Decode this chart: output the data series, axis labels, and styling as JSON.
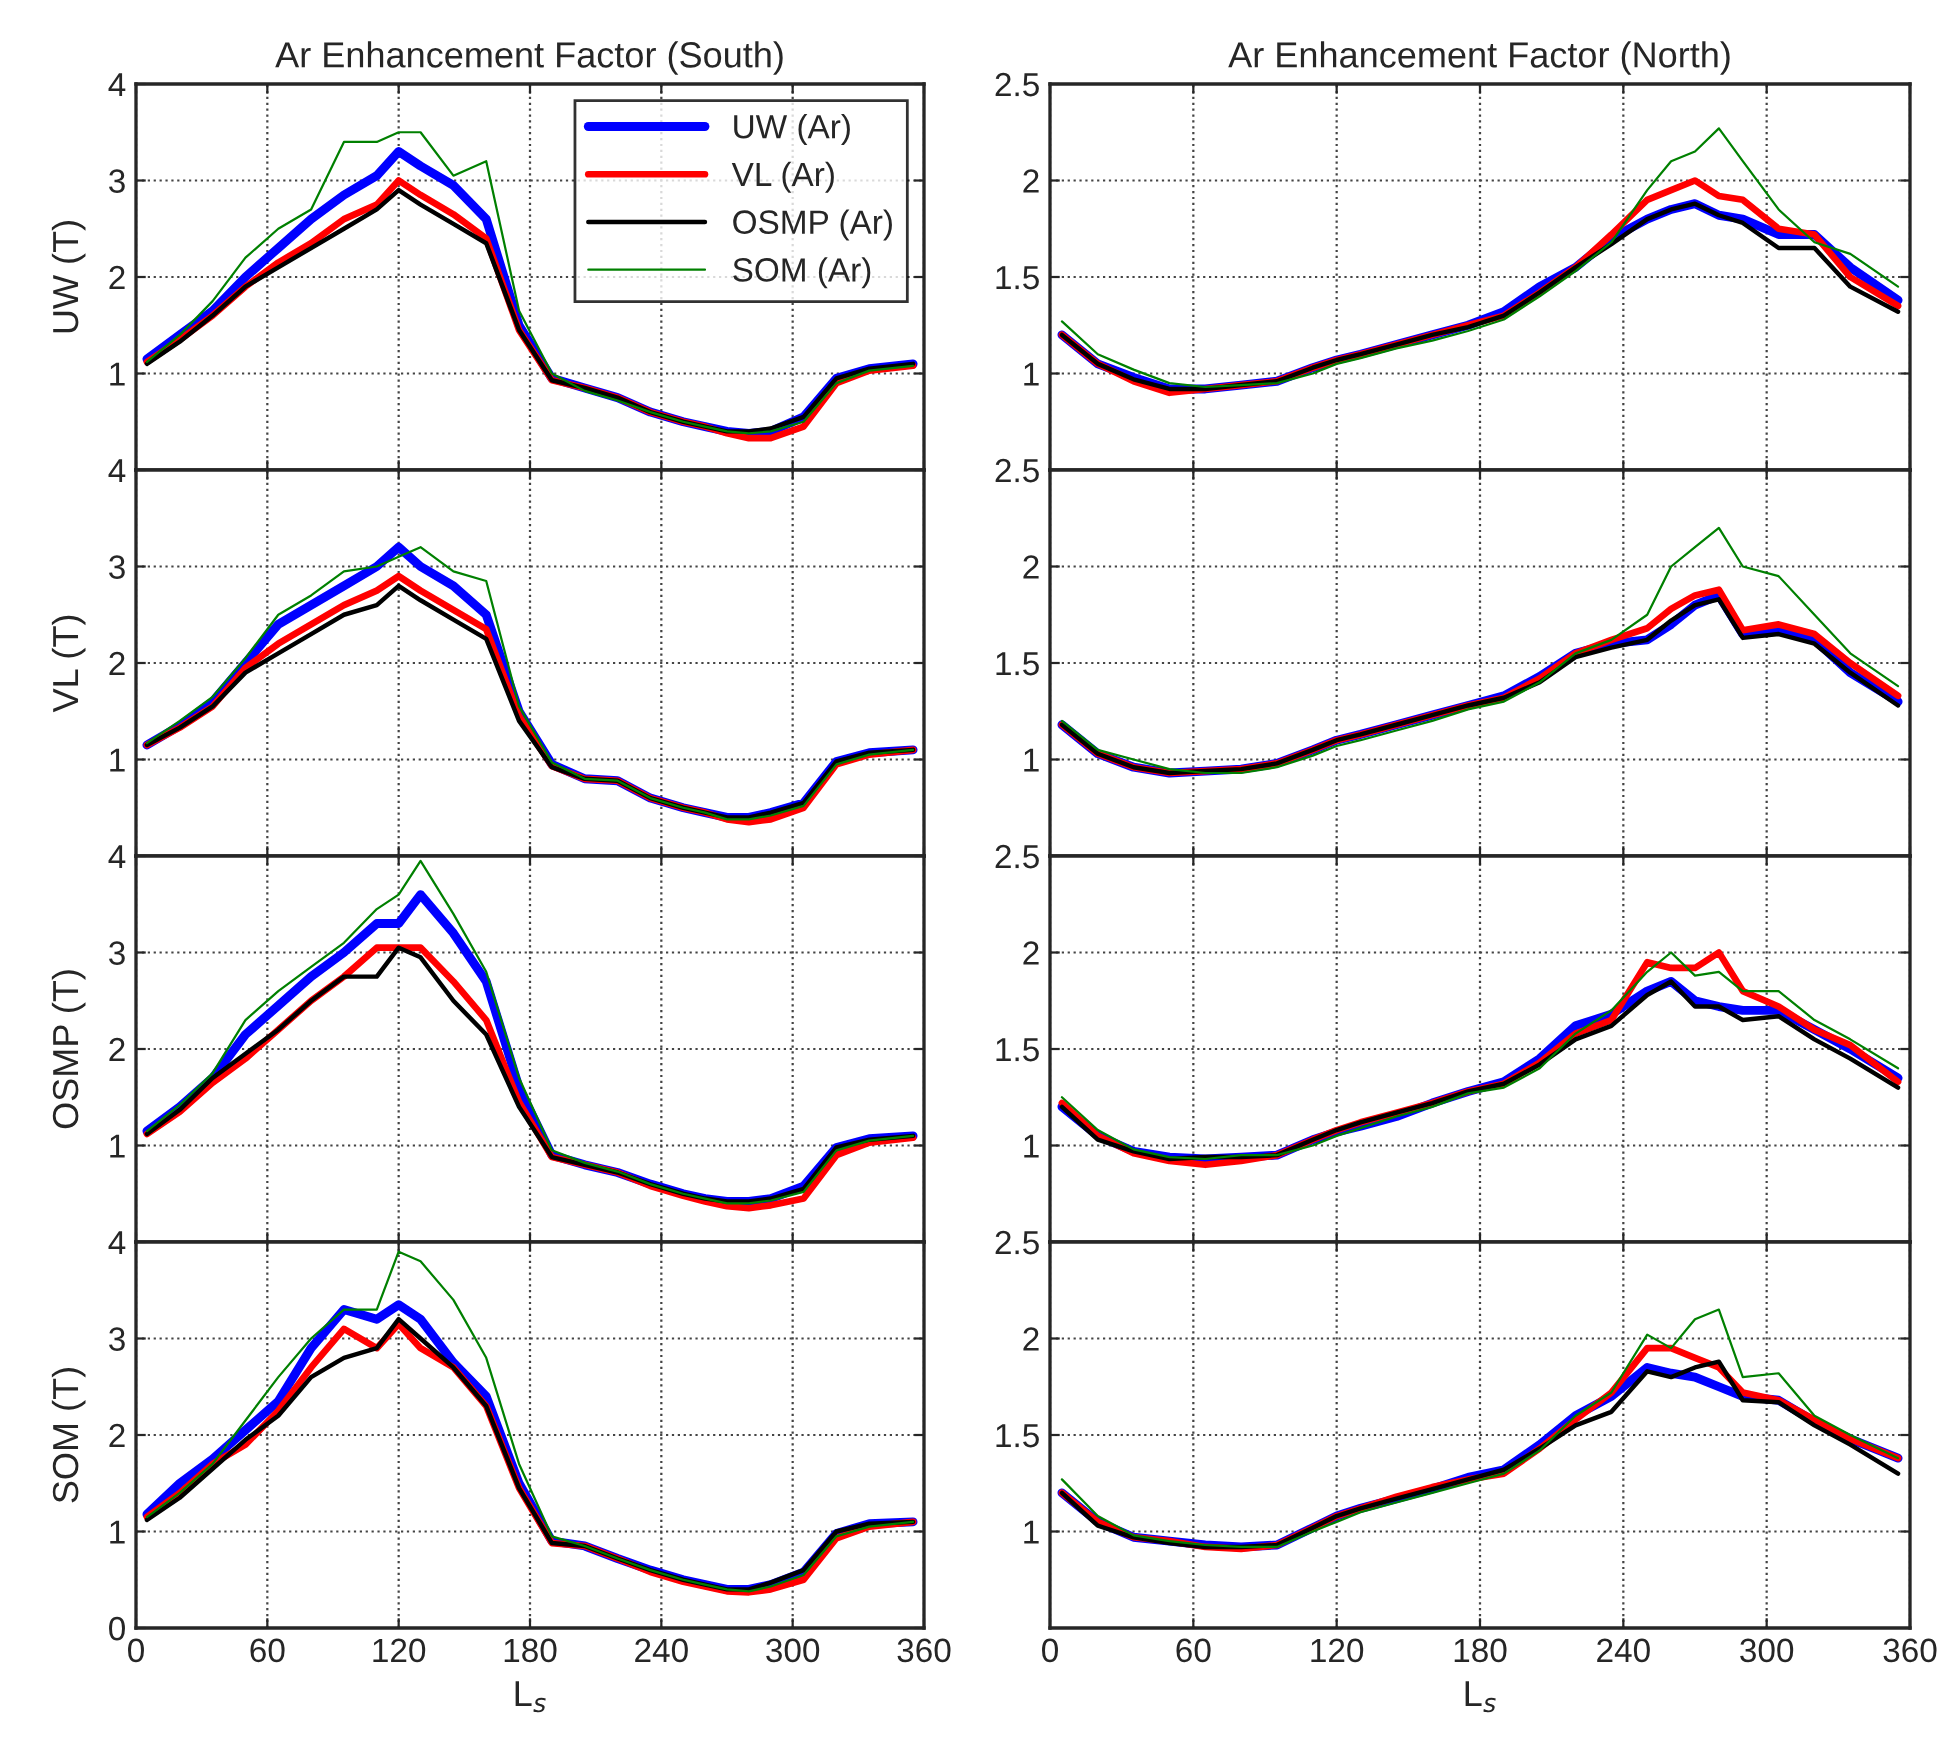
{
  "chart_data": [
    {
      "type": "line",
      "title": "Ar Enhancement Factor (South)",
      "ylabel": "UW (T)",
      "x": [
        5,
        20,
        35,
        50,
        65,
        80,
        95,
        110,
        120,
        130,
        145,
        160,
        175,
        190,
        205,
        220,
        235,
        250,
        260,
        270,
        280,
        290,
        305,
        320,
        335,
        355
      ],
      "xlim": [
        0,
        360
      ],
      "xticks": [
        0,
        60,
        120,
        180,
        240,
        300,
        360
      ],
      "ylim": [
        0,
        4
      ],
      "yticks": [
        1,
        2,
        3,
        4
      ],
      "tick_labels": "y",
      "grid": true,
      "legend": "top right",
      "series": [
        {
          "name": "UW (Ar)",
          "color": "#0000ff",
          "values": [
            1.15,
            1.4,
            1.65,
            2.0,
            2.3,
            2.6,
            2.85,
            3.05,
            3.3,
            3.15,
            2.95,
            2.6,
            1.5,
            0.95,
            0.85,
            0.75,
            0.6,
            0.5,
            0.45,
            0.4,
            0.38,
            0.4,
            0.55,
            0.95,
            1.05,
            1.1
          ]
        },
        {
          "name": "VL (Ar)",
          "color": "#ff0000",
          "values": [
            1.12,
            1.35,
            1.6,
            1.9,
            2.15,
            2.35,
            2.6,
            2.75,
            3.0,
            2.85,
            2.65,
            2.4,
            1.45,
            0.93,
            0.85,
            0.75,
            0.6,
            0.5,
            0.45,
            0.38,
            0.33,
            0.33,
            0.45,
            0.9,
            1.03,
            1.08
          ]
        },
        {
          "name": "OSMP (Ar)",
          "color": "#000000",
          "values": [
            1.1,
            1.33,
            1.6,
            1.9,
            2.1,
            2.3,
            2.5,
            2.7,
            2.9,
            2.75,
            2.55,
            2.35,
            1.45,
            0.93,
            0.85,
            0.75,
            0.6,
            0.5,
            0.45,
            0.4,
            0.4,
            0.43,
            0.55,
            0.95,
            1.05,
            1.1
          ]
        },
        {
          "name": "SOM (Ar)",
          "color": "#008000",
          "values": [
            1.12,
            1.4,
            1.75,
            2.2,
            2.5,
            2.7,
            3.4,
            3.4,
            3.5,
            3.5,
            3.05,
            3.2,
            1.65,
            1.0,
            0.82,
            0.72,
            0.6,
            0.5,
            0.45,
            0.4,
            0.38,
            0.4,
            0.5,
            0.9,
            1.03,
            1.08
          ]
        }
      ]
    },
    {
      "type": "line",
      "title": "Ar Enhancement Factor (North)",
      "x": [
        5,
        20,
        35,
        50,
        65,
        80,
        95,
        110,
        120,
        130,
        145,
        160,
        175,
        190,
        205,
        220,
        235,
        250,
        260,
        270,
        280,
        290,
        305,
        320,
        335,
        355
      ],
      "xlim": [
        0,
        360
      ],
      "xticks": [
        0,
        60,
        120,
        180,
        240,
        300,
        360
      ],
      "ylim": [
        0.5,
        2.5
      ],
      "yticks": [
        1,
        1.5,
        2,
        2.5
      ],
      "tick_labels": "y",
      "grid": true,
      "series": [
        {
          "color": "#0000ff",
          "values": [
            1.2,
            1.05,
            0.98,
            0.92,
            0.92,
            0.94,
            0.96,
            1.03,
            1.07,
            1.1,
            1.15,
            1.2,
            1.25,
            1.32,
            1.45,
            1.55,
            1.7,
            1.8,
            1.85,
            1.88,
            1.82,
            1.8,
            1.72,
            1.72,
            1.55,
            1.38
          ]
        },
        {
          "color": "#ff0000",
          "values": [
            1.2,
            1.05,
            0.96,
            0.9,
            0.92,
            0.94,
            0.96,
            1.03,
            1.07,
            1.1,
            1.15,
            1.2,
            1.25,
            1.3,
            1.42,
            1.55,
            1.72,
            1.9,
            1.95,
            2.0,
            1.92,
            1.9,
            1.75,
            1.72,
            1.5,
            1.35
          ]
        },
        {
          "color": "#000000",
          "values": [
            1.2,
            1.05,
            0.97,
            0.92,
            0.92,
            0.94,
            0.96,
            1.03,
            1.07,
            1.1,
            1.15,
            1.2,
            1.24,
            1.3,
            1.42,
            1.55,
            1.67,
            1.8,
            1.85,
            1.88,
            1.82,
            1.78,
            1.65,
            1.65,
            1.45,
            1.32
          ]
        },
        {
          "color": "#008000",
          "values": [
            1.27,
            1.1,
            1.02,
            0.95,
            0.93,
            0.94,
            0.95,
            1.0,
            1.05,
            1.08,
            1.13,
            1.17,
            1.22,
            1.28,
            1.4,
            1.53,
            1.68,
            1.95,
            2.1,
            2.15,
            2.27,
            2.1,
            1.85,
            1.68,
            1.62,
            1.45
          ]
        }
      ]
    },
    {
      "type": "line",
      "ylabel": "VL (T)",
      "x": [
        5,
        20,
        35,
        50,
        65,
        80,
        95,
        110,
        120,
        130,
        145,
        160,
        175,
        190,
        205,
        220,
        235,
        250,
        260,
        270,
        280,
        290,
        305,
        320,
        335,
        355
      ],
      "xlim": [
        0,
        360
      ],
      "xticks": [
        0,
        60,
        120,
        180,
        240,
        300,
        360
      ],
      "ylim": [
        0,
        4
      ],
      "yticks": [
        1,
        2,
        3,
        4
      ],
      "tick_labels": "y",
      "grid": true,
      "series": [
        {
          "color": "#0000ff",
          "values": [
            1.15,
            1.35,
            1.6,
            2.0,
            2.4,
            2.6,
            2.8,
            3.0,
            3.2,
            3.0,
            2.8,
            2.5,
            1.5,
            0.95,
            0.8,
            0.78,
            0.6,
            0.5,
            0.45,
            0.4,
            0.4,
            0.45,
            0.55,
            0.98,
            1.07,
            1.1
          ]
        },
        {
          "color": "#ff0000",
          "values": [
            1.15,
            1.33,
            1.55,
            1.95,
            2.2,
            2.4,
            2.6,
            2.75,
            2.9,
            2.75,
            2.55,
            2.35,
            1.45,
            0.93,
            0.8,
            0.78,
            0.6,
            0.5,
            0.45,
            0.38,
            0.35,
            0.38,
            0.5,
            0.95,
            1.05,
            1.1
          ]
        },
        {
          "color": "#000000",
          "values": [
            1.15,
            1.33,
            1.55,
            1.9,
            2.1,
            2.3,
            2.5,
            2.6,
            2.8,
            2.65,
            2.45,
            2.25,
            1.4,
            0.92,
            0.8,
            0.78,
            0.6,
            0.5,
            0.45,
            0.4,
            0.4,
            0.45,
            0.55,
            0.98,
            1.07,
            1.1
          ]
        },
        {
          "color": "#008000",
          "values": [
            1.17,
            1.4,
            1.65,
            2.05,
            2.5,
            2.7,
            2.95,
            3.0,
            3.1,
            3.2,
            2.95,
            2.85,
            1.55,
            0.97,
            0.8,
            0.78,
            0.6,
            0.5,
            0.45,
            0.38,
            0.38,
            0.42,
            0.52,
            0.95,
            1.05,
            1.1
          ]
        }
      ]
    },
    {
      "type": "line",
      "x": [
        5,
        20,
        35,
        50,
        65,
        80,
        95,
        110,
        120,
        130,
        145,
        160,
        175,
        190,
        205,
        220,
        235,
        250,
        260,
        270,
        280,
        290,
        305,
        320,
        335,
        355
      ],
      "xlim": [
        0,
        360
      ],
      "xticks": [
        0,
        60,
        120,
        180,
        240,
        300,
        360
      ],
      "ylim": [
        0.5,
        2.5
      ],
      "yticks": [
        1,
        1.5,
        2,
        2.5
      ],
      "tick_labels": "y",
      "grid": true,
      "series": [
        {
          "color": "#0000ff",
          "values": [
            1.18,
            1.03,
            0.96,
            0.93,
            0.94,
            0.95,
            0.98,
            1.05,
            1.1,
            1.13,
            1.18,
            1.23,
            1.28,
            1.33,
            1.43,
            1.55,
            1.6,
            1.62,
            1.7,
            1.8,
            1.85,
            1.65,
            1.68,
            1.62,
            1.45,
            1.3
          ]
        },
        {
          "color": "#ff0000",
          "values": [
            1.18,
            1.03,
            0.96,
            0.93,
            0.94,
            0.95,
            0.98,
            1.05,
            1.1,
            1.13,
            1.18,
            1.23,
            1.28,
            1.32,
            1.42,
            1.55,
            1.62,
            1.68,
            1.78,
            1.85,
            1.88,
            1.67,
            1.7,
            1.65,
            1.5,
            1.33
          ]
        },
        {
          "color": "#000000",
          "values": [
            1.18,
            1.03,
            0.96,
            0.93,
            0.94,
            0.95,
            0.98,
            1.05,
            1.1,
            1.13,
            1.18,
            1.23,
            1.28,
            1.32,
            1.4,
            1.53,
            1.58,
            1.62,
            1.72,
            1.8,
            1.83,
            1.63,
            1.65,
            1.6,
            1.45,
            1.28
          ]
        },
        {
          "color": "#008000",
          "values": [
            1.2,
            1.05,
            1.0,
            0.95,
            0.93,
            0.93,
            0.96,
            1.02,
            1.07,
            1.1,
            1.15,
            1.2,
            1.26,
            1.3,
            1.4,
            1.55,
            1.62,
            1.75,
            2.0,
            2.1,
            2.2,
            2.0,
            1.95,
            1.75,
            1.55,
            1.38
          ]
        }
      ]
    },
    {
      "type": "line",
      "ylabel": "OSMP (T)",
      "x": [
        5,
        20,
        35,
        50,
        65,
        80,
        95,
        110,
        120,
        130,
        145,
        160,
        175,
        190,
        205,
        220,
        235,
        250,
        260,
        270,
        280,
        290,
        305,
        320,
        335,
        355
      ],
      "xlim": [
        0,
        360
      ],
      "xticks": [
        0,
        60,
        120,
        180,
        240,
        300,
        360
      ],
      "ylim": [
        0,
        4
      ],
      "yticks": [
        1,
        2,
        3,
        4
      ],
      "tick_labels": "y",
      "grid": true,
      "series": [
        {
          "color": "#0000ff",
          "values": [
            1.15,
            1.4,
            1.7,
            2.15,
            2.45,
            2.75,
            3.0,
            3.3,
            3.3,
            3.6,
            3.2,
            2.7,
            1.6,
            0.9,
            0.8,
            0.72,
            0.6,
            0.5,
            0.45,
            0.42,
            0.42,
            0.45,
            0.58,
            0.98,
            1.07,
            1.1
          ]
        },
        {
          "color": "#ff0000",
          "values": [
            1.12,
            1.35,
            1.65,
            1.9,
            2.2,
            2.5,
            2.75,
            3.05,
            3.05,
            3.05,
            2.7,
            2.3,
            1.45,
            0.88,
            0.8,
            0.72,
            0.58,
            0.48,
            0.42,
            0.37,
            0.35,
            0.38,
            0.45,
            0.9,
            1.03,
            1.08
          ]
        },
        {
          "color": "#000000",
          "values": [
            1.12,
            1.37,
            1.7,
            1.95,
            2.2,
            2.5,
            2.75,
            2.75,
            3.05,
            2.95,
            2.5,
            2.15,
            1.4,
            0.88,
            0.8,
            0.72,
            0.6,
            0.5,
            0.45,
            0.42,
            0.42,
            0.45,
            0.55,
            0.98,
            1.06,
            1.1
          ]
        },
        {
          "color": "#008000",
          "values": [
            1.15,
            1.42,
            1.75,
            2.3,
            2.6,
            2.85,
            3.1,
            3.45,
            3.6,
            3.95,
            3.4,
            2.8,
            1.7,
            0.95,
            0.82,
            0.73,
            0.6,
            0.5,
            0.45,
            0.4,
            0.4,
            0.43,
            0.52,
            0.95,
            1.05,
            1.1
          ]
        }
      ]
    },
    {
      "type": "line",
      "x": [
        5,
        20,
        35,
        50,
        65,
        80,
        95,
        110,
        120,
        130,
        145,
        160,
        175,
        190,
        205,
        220,
        235,
        250,
        260,
        270,
        280,
        290,
        305,
        320,
        335,
        355
      ],
      "xlim": [
        0,
        360
      ],
      "xticks": [
        0,
        60,
        120,
        180,
        240,
        300,
        360
      ],
      "ylim": [
        0.5,
        2.5
      ],
      "yticks": [
        1,
        1.5,
        2,
        2.5
      ],
      "tick_labels": "y",
      "grid": true,
      "series": [
        {
          "color": "#0000ff",
          "values": [
            1.2,
            1.05,
            0.97,
            0.94,
            0.93,
            0.94,
            0.95,
            1.03,
            1.07,
            1.1,
            1.15,
            1.22,
            1.28,
            1.33,
            1.45,
            1.62,
            1.68,
            1.8,
            1.85,
            1.75,
            1.72,
            1.7,
            1.7,
            1.6,
            1.5,
            1.35
          ]
        },
        {
          "color": "#ff0000",
          "values": [
            1.22,
            1.05,
            0.96,
            0.92,
            0.9,
            0.92,
            0.95,
            1.03,
            1.08,
            1.12,
            1.17,
            1.22,
            1.28,
            1.32,
            1.43,
            1.58,
            1.65,
            1.95,
            1.92,
            1.92,
            2.0,
            1.8,
            1.72,
            1.6,
            1.52,
            1.33
          ]
        },
        {
          "color": "#000000",
          "values": [
            1.2,
            1.03,
            0.97,
            0.93,
            0.94,
            0.94,
            0.95,
            1.03,
            1.08,
            1.12,
            1.17,
            1.22,
            1.28,
            1.32,
            1.42,
            1.55,
            1.62,
            1.78,
            1.85,
            1.72,
            1.72,
            1.65,
            1.67,
            1.55,
            1.45,
            1.3
          ]
        },
        {
          "color": "#008000",
          "values": [
            1.25,
            1.08,
            0.98,
            0.94,
            0.93,
            0.95,
            0.95,
            1.0,
            1.05,
            1.09,
            1.15,
            1.2,
            1.27,
            1.3,
            1.4,
            1.58,
            1.7,
            1.9,
            2.0,
            1.88,
            1.9,
            1.8,
            1.8,
            1.65,
            1.55,
            1.4
          ]
        }
      ]
    },
    {
      "type": "line",
      "ylabel": "SOM (T)",
      "xlabel": "L$_{s}$",
      "x": [
        5,
        20,
        35,
        50,
        65,
        80,
        95,
        110,
        120,
        130,
        145,
        160,
        175,
        190,
        205,
        220,
        235,
        250,
        260,
        270,
        280,
        290,
        305,
        320,
        335,
        355
      ],
      "xlim": [
        0,
        360
      ],
      "xticks": [
        0,
        60,
        120,
        180,
        240,
        300,
        360
      ],
      "ylim": [
        0,
        4
      ],
      "yticks": [
        0,
        1,
        2,
        3,
        4
      ],
      "grid": true,
      "series": [
        {
          "color": "#0000ff",
          "values": [
            1.18,
            1.5,
            1.75,
            2.05,
            2.35,
            2.9,
            3.3,
            3.2,
            3.35,
            3.2,
            2.75,
            2.4,
            1.5,
            0.9,
            0.85,
            0.72,
            0.6,
            0.5,
            0.45,
            0.4,
            0.4,
            0.45,
            0.58,
            0.98,
            1.08,
            1.1
          ]
        },
        {
          "color": "#ff0000",
          "values": [
            1.15,
            1.4,
            1.7,
            1.9,
            2.25,
            2.7,
            3.1,
            2.9,
            3.15,
            2.9,
            2.7,
            2.3,
            1.45,
            0.88,
            0.85,
            0.72,
            0.58,
            0.48,
            0.43,
            0.38,
            0.37,
            0.4,
            0.5,
            0.93,
            1.05,
            1.1
          ]
        },
        {
          "color": "#000000",
          "values": [
            1.12,
            1.35,
            1.65,
            1.95,
            2.2,
            2.6,
            2.8,
            2.9,
            3.2,
            3.0,
            2.7,
            2.3,
            1.45,
            0.88,
            0.85,
            0.72,
            0.6,
            0.5,
            0.45,
            0.4,
            0.4,
            0.47,
            0.6,
            1.0,
            1.08,
            1.1
          ]
        },
        {
          "color": "#008000",
          "values": [
            1.15,
            1.4,
            1.7,
            2.15,
            2.6,
            3.0,
            3.3,
            3.3,
            3.9,
            3.8,
            3.4,
            2.8,
            1.7,
            0.95,
            0.85,
            0.72,
            0.6,
            0.5,
            0.45,
            0.4,
            0.38,
            0.43,
            0.55,
            0.95,
            1.05,
            1.1
          ]
        }
      ]
    },
    {
      "type": "line",
      "xlabel": "L$_{s}$",
      "x": [
        5,
        20,
        35,
        50,
        65,
        80,
        95,
        110,
        120,
        130,
        145,
        160,
        175,
        190,
        205,
        220,
        235,
        250,
        260,
        270,
        280,
        290,
        305,
        320,
        335,
        355
      ],
      "xlim": [
        0,
        360
      ],
      "xticks": [
        0,
        60,
        120,
        180,
        240,
        300,
        360
      ],
      "ylim": [
        0.5,
        2.5
      ],
      "yticks": [
        1,
        1.5,
        2,
        2.5
      ],
      "grid": true,
      "series": [
        {
          "color": "#0000ff",
          "values": [
            1.2,
            1.05,
            0.97,
            0.95,
            0.93,
            0.92,
            0.93,
            1.02,
            1.08,
            1.12,
            1.17,
            1.22,
            1.28,
            1.32,
            1.45,
            1.6,
            1.7,
            1.85,
            1.82,
            1.8,
            1.75,
            1.7,
            1.68,
            1.57,
            1.48,
            1.38
          ]
        },
        {
          "color": "#ff0000",
          "values": [
            1.2,
            1.05,
            0.97,
            0.95,
            0.92,
            0.91,
            0.93,
            1.02,
            1.08,
            1.12,
            1.18,
            1.23,
            1.27,
            1.3,
            1.43,
            1.58,
            1.72,
            1.95,
            1.95,
            1.9,
            1.85,
            1.72,
            1.68,
            1.58,
            1.48,
            1.38
          ]
        },
        {
          "color": "#000000",
          "values": [
            1.2,
            1.03,
            0.97,
            0.94,
            0.92,
            0.92,
            0.93,
            1.02,
            1.08,
            1.12,
            1.17,
            1.22,
            1.27,
            1.32,
            1.43,
            1.55,
            1.62,
            1.83,
            1.8,
            1.85,
            1.88,
            1.68,
            1.67,
            1.55,
            1.45,
            1.3
          ]
        },
        {
          "color": "#008000",
          "values": [
            1.27,
            1.08,
            0.98,
            0.95,
            0.93,
            0.92,
            0.92,
            1.0,
            1.05,
            1.1,
            1.15,
            1.2,
            1.25,
            1.3,
            1.42,
            1.6,
            1.72,
            2.02,
            1.95,
            2.1,
            2.15,
            1.8,
            1.82,
            1.6,
            1.5,
            1.38
          ]
        }
      ]
    }
  ]
}
